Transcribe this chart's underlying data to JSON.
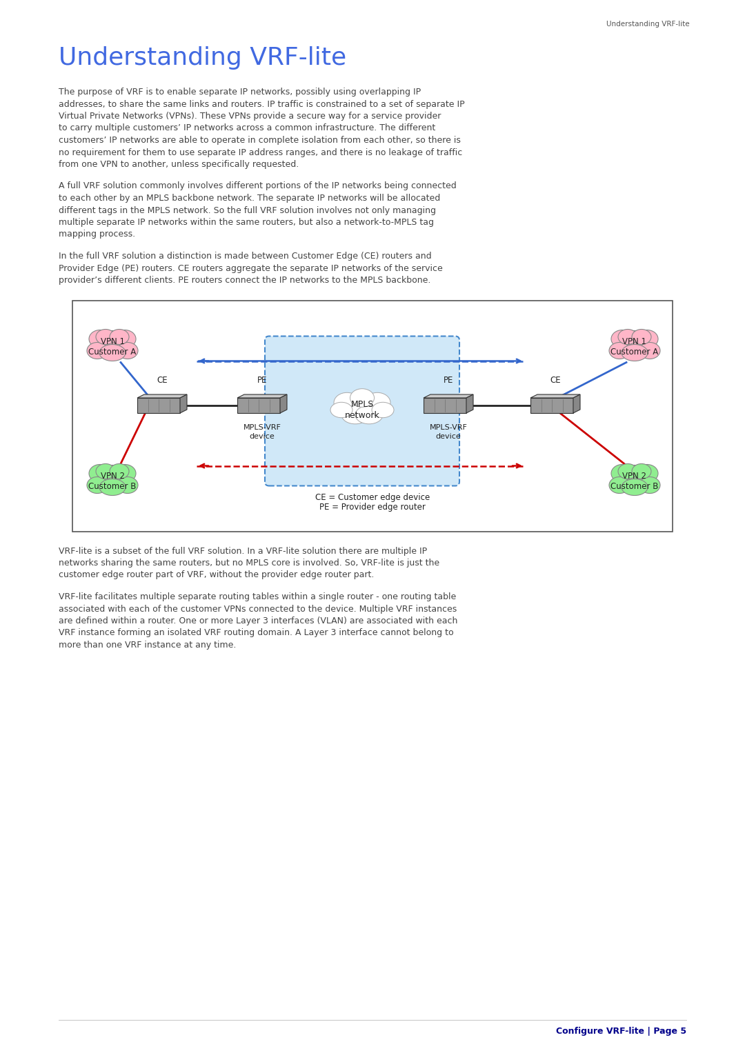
{
  "page_title_header": "Understanding VRF-lite",
  "header_color": "#555555",
  "title_color": "#4169E1",
  "title": "Understanding VRF-lite",
  "footer_text": "Configure VRF-lite | Page 5",
  "footer_color": "#00008B",
  "body_color": "#444444",
  "bg_color": "#ffffff",
  "para1_lines": [
    "The purpose of VRF is to enable separate IP networks, possibly using overlapping IP",
    "addresses, to share the same links and routers. IP traffic is constrained to a set of separate IP",
    "Virtual Private Networks (VPNs). These VPNs provide a secure way for a service provider",
    "to carry multiple customers’ IP networks across a common infrastructure. The different",
    "customers’ IP networks are able to operate in complete isolation from each other, so there is",
    "no requirement for them to use separate IP address ranges, and there is no leakage of traffic",
    "from one VPN to another, unless specifically requested."
  ],
  "para2_lines": [
    "A full VRF solution commonly involves different portions of the IP networks being connected",
    "to each other by an MPLS backbone network. The separate IP networks will be allocated",
    "different tags in the MPLS network. So the full VRF solution involves not only managing",
    "multiple separate IP networks within the same routers, but also a network-to-MPLS tag",
    "mapping process."
  ],
  "para3_lines": [
    "In the full VRF solution a distinction is made between Customer Edge (CE) routers and",
    "Provider Edge (PE) routers. CE routers aggregate the separate IP networks of the service",
    "provider’s different clients. PE routers connect the IP networks to the MPLS backbone."
  ],
  "para4_lines": [
    "VRF-lite is a subset of the full VRF solution. In a VRF-lite solution there are multiple IP",
    "networks sharing the same routers, but no MPLS core is involved. So, VRF-lite is just the",
    "customer edge router part of VRF, without the provider edge router part."
  ],
  "para5_lines": [
    "VRF-lite facilitates multiple separate routing tables within a single router - one routing table",
    "associated with each of the customer VPNs connected to the device. Multiple VRF instances",
    "are defined within a router. One or more Layer 3 interfaces (VLAN) are associated with each",
    "VRF instance forming an isolated VRF routing domain. A Layer 3 interface cannot belong to",
    "more than one VRF instance at any time."
  ],
  "vpn1_color": "#ffb6c8",
  "vpn2_color": "#90ee90",
  "cloud_edge_color": "#999999",
  "switch_color": "#aaaaaa",
  "mpls_fill": "#d0e8f8",
  "mpls_edge": "#4488cc",
  "arrow_blue": "#3366cc",
  "arrow_red": "#cc0000",
  "line_black": "#222222",
  "diag_border": "#555555"
}
